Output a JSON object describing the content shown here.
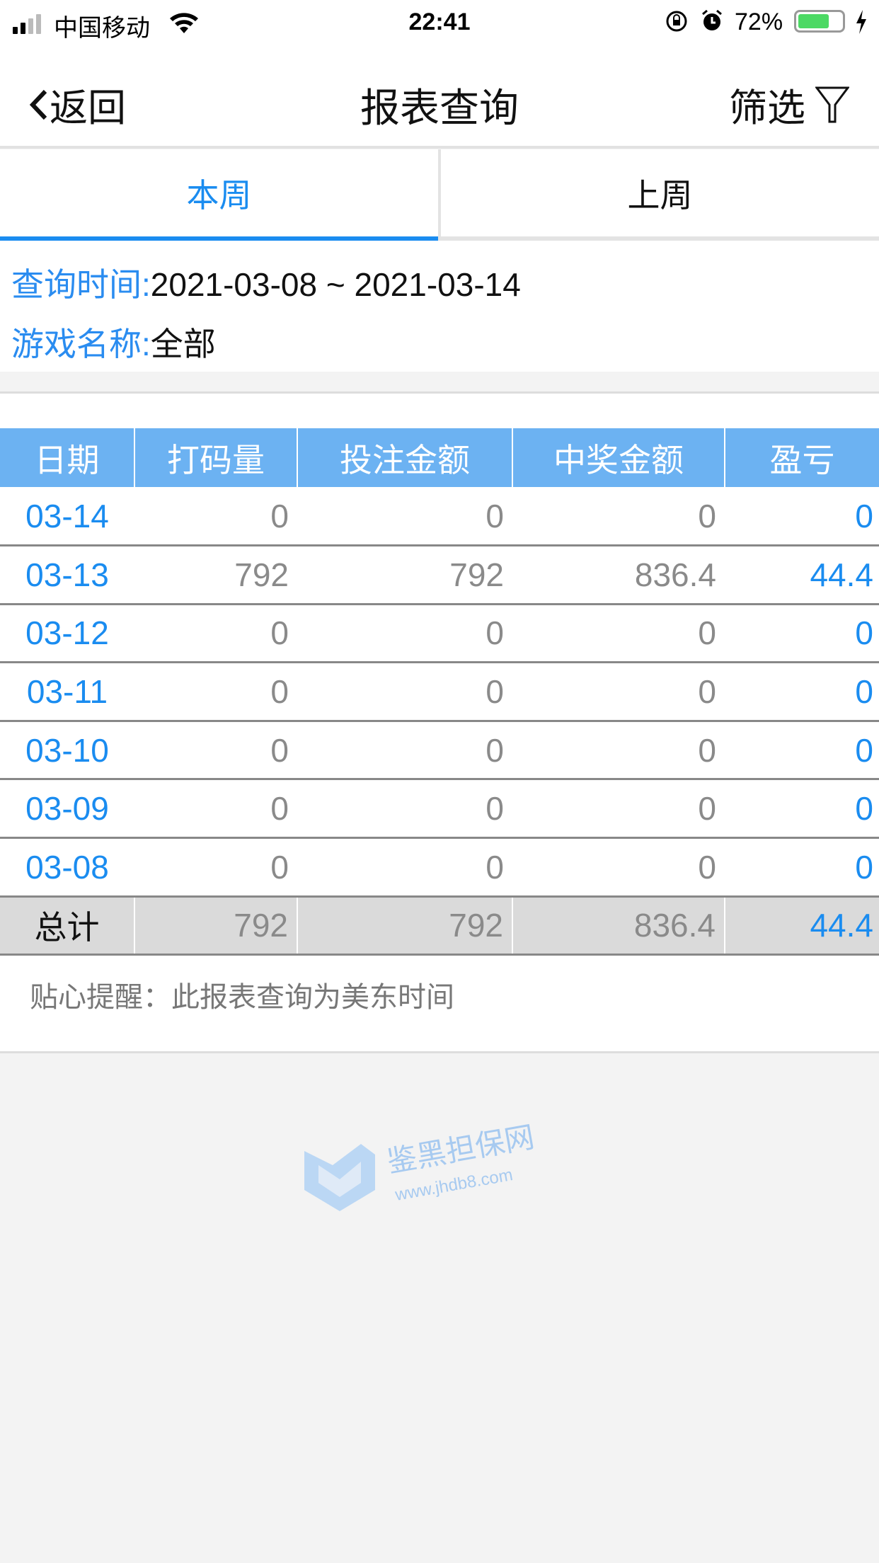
{
  "status_bar": {
    "carrier": "中国移动",
    "time": "22:41",
    "battery": "72%",
    "battery_level": 0.72,
    "battery_color": "#4cd964"
  },
  "nav": {
    "back_label": "返回",
    "title": "报表查询",
    "filter_label": "筛选"
  },
  "tabs": [
    {
      "label": "本周",
      "active": true
    },
    {
      "label": "上周",
      "active": false
    }
  ],
  "query": {
    "time_label": "查询时间:",
    "time_value": "2021-03-08 ~ 2021-03-14",
    "game_label": "游戏名称:",
    "game_value": "全部"
  },
  "table": {
    "headers": [
      "日期",
      "打码量",
      "投注金额",
      "中奖金额",
      "盈亏"
    ],
    "rows": [
      [
        "03-14",
        "0",
        "0",
        "0",
        "0"
      ],
      [
        "03-13",
        "792",
        "792",
        "836.4",
        "44.4"
      ],
      [
        "03-12",
        "0",
        "0",
        "0",
        "0"
      ],
      [
        "03-11",
        "0",
        "0",
        "0",
        "0"
      ],
      [
        "03-10",
        "0",
        "0",
        "0",
        "0"
      ],
      [
        "03-09",
        "0",
        "0",
        "0",
        "0"
      ],
      [
        "03-08",
        "0",
        "0",
        "0",
        "0"
      ]
    ],
    "total": [
      "总计",
      "792",
      "792",
      "836.4",
      "44.4"
    ]
  },
  "note": "贴心提醒：此报表查询为美东时间",
  "watermark": {
    "text": "鉴黑担保网",
    "url": "www.jhdb8.com"
  },
  "colors": {
    "accent": "#1a8cf0",
    "header_bg": "#6cb2f2",
    "total_bg": "#dadada"
  }
}
